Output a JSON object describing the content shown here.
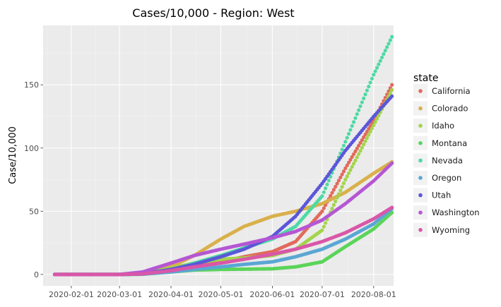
{
  "chart_data": {
    "type": "scatter",
    "title": "Cases/10,000 - Region: West",
    "xlabel": "",
    "ylabel": "Case/10,000",
    "x_ticks": [
      "2020-02-01",
      "2020-03-01",
      "2020-04-01",
      "2020-05-01",
      "2020-06-01",
      "2020-07-01",
      "2020-08-01"
    ],
    "y_ticks": [
      "0",
      "50",
      "100",
      "150"
    ],
    "xlim": [
      "2020-01-15",
      "2020-08-13"
    ],
    "ylim": [
      -9,
      197
    ],
    "grid": true,
    "legend": {
      "title": "state",
      "placement": "right"
    },
    "series": [
      {
        "name": "California",
        "color": "#E16A5B",
        "points": [
          [
            "2020-01-22",
            0
          ],
          [
            "2020-03-01",
            0
          ],
          [
            "2020-03-15",
            0.5
          ],
          [
            "2020-04-01",
            2.5
          ],
          [
            "2020-04-15",
            6
          ],
          [
            "2020-05-01",
            10
          ],
          [
            "2020-05-15",
            14
          ],
          [
            "2020-06-01",
            18
          ],
          [
            "2020-06-15",
            26
          ],
          [
            "2020-07-01",
            50
          ],
          [
            "2020-07-15",
            84
          ],
          [
            "2020-08-01",
            122
          ],
          [
            "2020-08-12",
            150
          ]
        ]
      },
      {
        "name": "Colorado",
        "color": "#D9B04B",
        "points": [
          [
            "2020-01-22",
            0
          ],
          [
            "2020-03-01",
            0
          ],
          [
            "2020-03-15",
            1
          ],
          [
            "2020-04-01",
            6
          ],
          [
            "2020-04-15",
            15
          ],
          [
            "2020-05-01",
            28
          ],
          [
            "2020-05-15",
            38
          ],
          [
            "2020-06-01",
            46
          ],
          [
            "2020-06-15",
            50
          ],
          [
            "2020-07-01",
            56
          ],
          [
            "2020-07-15",
            65
          ],
          [
            "2020-08-01",
            80
          ],
          [
            "2020-08-12",
            89
          ]
        ]
      },
      {
        "name": "Idaho",
        "color": "#A3D44B",
        "points": [
          [
            "2020-01-22",
            0
          ],
          [
            "2020-03-01",
            0
          ],
          [
            "2020-03-15",
            0.5
          ],
          [
            "2020-04-01",
            5
          ],
          [
            "2020-04-15",
            9
          ],
          [
            "2020-05-01",
            12
          ],
          [
            "2020-05-15",
            13
          ],
          [
            "2020-06-01",
            15
          ],
          [
            "2020-06-15",
            20
          ],
          [
            "2020-07-01",
            35
          ],
          [
            "2020-07-15",
            75
          ],
          [
            "2020-08-01",
            118
          ],
          [
            "2020-08-12",
            146
          ]
        ]
      },
      {
        "name": "Montana",
        "color": "#5AD45A",
        "points": [
          [
            "2020-01-22",
            0
          ],
          [
            "2020-03-01",
            0
          ],
          [
            "2020-03-15",
            0.2
          ],
          [
            "2020-04-01",
            2
          ],
          [
            "2020-04-15",
            3.5
          ],
          [
            "2020-05-01",
            4
          ],
          [
            "2020-05-15",
            4.2
          ],
          [
            "2020-06-01",
            4.5
          ],
          [
            "2020-06-15",
            6
          ],
          [
            "2020-07-01",
            10
          ],
          [
            "2020-07-15",
            22
          ],
          [
            "2020-08-01",
            36
          ],
          [
            "2020-08-12",
            49
          ]
        ]
      },
      {
        "name": "Nevada",
        "color": "#4DD9A4",
        "points": [
          [
            "2020-01-22",
            0
          ],
          [
            "2020-03-01",
            0
          ],
          [
            "2020-03-15",
            0.3
          ],
          [
            "2020-04-01",
            3.5
          ],
          [
            "2020-04-15",
            9
          ],
          [
            "2020-05-01",
            15
          ],
          [
            "2020-05-15",
            21
          ],
          [
            "2020-06-01",
            28
          ],
          [
            "2020-06-15",
            38
          ],
          [
            "2020-07-01",
            62
          ],
          [
            "2020-07-15",
            105
          ],
          [
            "2020-08-01",
            158
          ],
          [
            "2020-08-12",
            188
          ]
        ]
      },
      {
        "name": "Oregon",
        "color": "#5AA6D4",
        "points": [
          [
            "2020-01-22",
            0
          ],
          [
            "2020-03-01",
            0
          ],
          [
            "2020-03-15",
            0.3
          ],
          [
            "2020-04-01",
            2
          ],
          [
            "2020-04-15",
            4
          ],
          [
            "2020-05-01",
            6
          ],
          [
            "2020-05-15",
            8
          ],
          [
            "2020-06-01",
            10
          ],
          [
            "2020-06-15",
            14
          ],
          [
            "2020-07-01",
            20
          ],
          [
            "2020-07-15",
            28
          ],
          [
            "2020-08-01",
            40
          ],
          [
            "2020-08-12",
            52
          ]
        ]
      },
      {
        "name": "Utah",
        "color": "#5B56D9",
        "points": [
          [
            "2020-01-22",
            0
          ],
          [
            "2020-03-01",
            0
          ],
          [
            "2020-03-15",
            0.5
          ],
          [
            "2020-04-01",
            4
          ],
          [
            "2020-04-15",
            8
          ],
          [
            "2020-05-01",
            14
          ],
          [
            "2020-05-15",
            20
          ],
          [
            "2020-06-01",
            30
          ],
          [
            "2020-06-15",
            46
          ],
          [
            "2020-07-01",
            72
          ],
          [
            "2020-07-15",
            98
          ],
          [
            "2020-08-01",
            125
          ],
          [
            "2020-08-12",
            141
          ]
        ]
      },
      {
        "name": "Washington",
        "color": "#B556D4",
        "points": [
          [
            "2020-01-22",
            0
          ],
          [
            "2020-03-01",
            0
          ],
          [
            "2020-03-15",
            2
          ],
          [
            "2020-04-01",
            9
          ],
          [
            "2020-04-15",
            15
          ],
          [
            "2020-05-01",
            20
          ],
          [
            "2020-05-15",
            24
          ],
          [
            "2020-06-01",
            29
          ],
          [
            "2020-06-15",
            34
          ],
          [
            "2020-07-01",
            43
          ],
          [
            "2020-07-15",
            56
          ],
          [
            "2020-08-01",
            74
          ],
          [
            "2020-08-12",
            88
          ]
        ]
      },
      {
        "name": "Wyoming",
        "color": "#D957A8",
        "points": [
          [
            "2020-01-22",
            0
          ],
          [
            "2020-03-01",
            0
          ],
          [
            "2020-03-15",
            0.5
          ],
          [
            "2020-04-01",
            3
          ],
          [
            "2020-04-15",
            6
          ],
          [
            "2020-05-01",
            9
          ],
          [
            "2020-05-15",
            12
          ],
          [
            "2020-06-01",
            16
          ],
          [
            "2020-06-15",
            20
          ],
          [
            "2020-07-01",
            26
          ],
          [
            "2020-07-15",
            33
          ],
          [
            "2020-08-01",
            44
          ],
          [
            "2020-08-12",
            53
          ]
        ]
      }
    ]
  }
}
